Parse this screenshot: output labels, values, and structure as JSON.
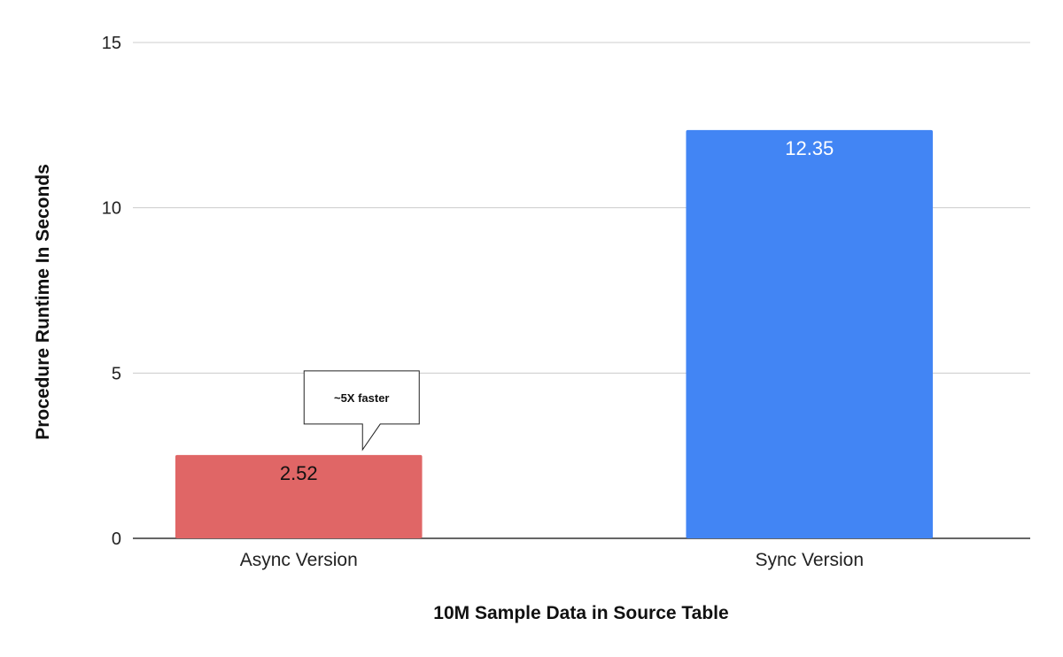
{
  "chart_data": {
    "type": "bar",
    "categories": [
      "Async Version",
      "Sync Version"
    ],
    "values": [
      2.52,
      12.35
    ],
    "data_labels": [
      "2.52",
      "12.35"
    ],
    "colors": [
      "#e06666",
      "#4285f4"
    ],
    "label_colors": [
      "#111111",
      "#ffffff"
    ],
    "title": "",
    "xlabel": "10M Sample Data in Source Table",
    "ylabel": "Procedure Runtime In Seconds",
    "ylim": [
      0,
      15
    ],
    "yticks": [
      0,
      5,
      10,
      15
    ],
    "grid": true,
    "annotation": {
      "text": "~5X faster",
      "category": "Async Version"
    }
  }
}
